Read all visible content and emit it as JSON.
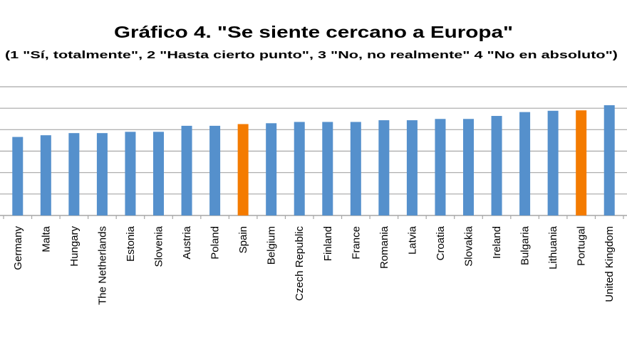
{
  "chart_data": {
    "type": "bar",
    "title": "Gráfico 4. \"Se siente cercano a Europa\"",
    "subtitle": "(1 \"Sí, totalmente\", 2 \"Hasta cierto punto\", 3 \"No, no realmente\" 4 \"No en absoluto\")",
    "xlabel": "",
    "ylabel": "",
    "ylim": [
      0,
      3
    ],
    "ytick_step": 0.5,
    "ytick_labels_visible": false,
    "grid": true,
    "categories": [
      "Germany",
      "Malta",
      "Hungary",
      "The Netherlands",
      "Estonia",
      "Slovenia",
      "Austria",
      "Poland",
      "Spain",
      "Belgium",
      "Czech Republic",
      "Finland",
      "France",
      "Romania",
      "Latvia",
      "Croatia",
      "Slovakia",
      "Ireland",
      "Bulgaria",
      "Lithuania",
      "Portugal",
      "United Kingdom"
    ],
    "values": [
      1.83,
      1.87,
      1.92,
      1.92,
      1.95,
      1.95,
      2.09,
      2.09,
      2.13,
      2.15,
      2.18,
      2.18,
      2.18,
      2.22,
      2.22,
      2.25,
      2.25,
      2.32,
      2.41,
      2.44,
      2.45,
      2.57
    ],
    "highlighted": [
      "Spain",
      "Portugal"
    ],
    "colors": {
      "default": "#5590CC",
      "highlight": "#F47B00",
      "grid": "#A6A6A6"
    }
  }
}
